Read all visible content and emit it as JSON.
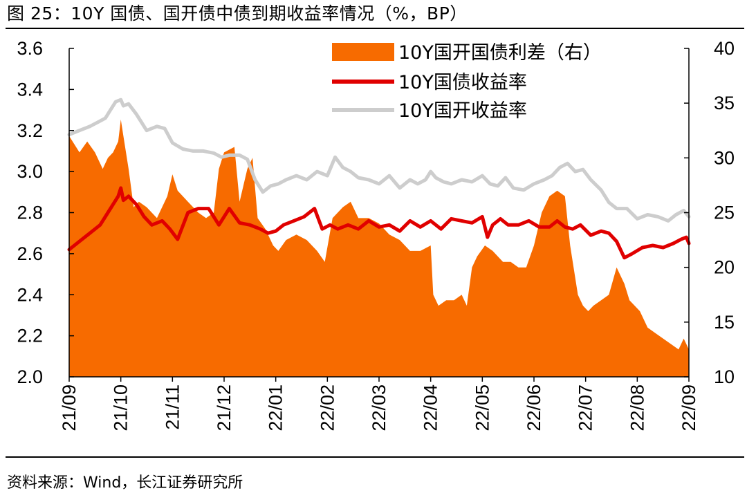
{
  "header": {
    "title": "图 25：10Y 国债、国开债中债到期收益率情况（%，BP）"
  },
  "footer": {
    "source": "资料来源：Wind，长江证券研究所"
  },
  "colors": {
    "spread": "#F76B00",
    "treasury": "#E00000",
    "cdb": "#CDCDCD",
    "axis": "#000000"
  },
  "chart_data": {
    "type": "area+line",
    "title": "10Y 国债、国开债中债到期收益率情况（%，BP）",
    "x_ticks": [
      "21/09",
      "21/10",
      "21/11",
      "21/12",
      "22/01",
      "22/02",
      "22/03",
      "22/04",
      "22/05",
      "22/06",
      "22/07",
      "22/08",
      "22/09"
    ],
    "y_left": {
      "label": "%",
      "range": [
        2.0,
        3.6
      ],
      "ticks": [
        "2.0",
        "2.2",
        "2.4",
        "2.6",
        "2.8",
        "3.0",
        "3.2",
        "3.4",
        "3.6"
      ]
    },
    "y_right": {
      "label": "BP",
      "range": [
        10,
        40
      ],
      "ticks": [
        "10",
        "15",
        "20",
        "25",
        "30",
        "35",
        "40"
      ]
    },
    "legend": {
      "position": "top-right",
      "items": [
        "10Y国开国债利差（右）",
        "10Y国债收益率",
        "10Y国开收益率"
      ]
    },
    "x_domain": [
      0,
      12
    ],
    "series": [
      {
        "name": "10Y国开国债利差（右）",
        "axis": "right",
        "kind": "area",
        "x": [
          0,
          0.2,
          0.35,
          0.5,
          0.65,
          0.75,
          0.85,
          0.95,
          1.0,
          1.05,
          1.15,
          1.25,
          1.35,
          1.5,
          1.7,
          1.9,
          2.0,
          2.1,
          2.3,
          2.5,
          2.65,
          2.8,
          2.9,
          3.0,
          3.2,
          3.3,
          3.45,
          3.55,
          3.65,
          3.8,
          3.95,
          4.05,
          4.2,
          4.4,
          4.6,
          4.8,
          4.95,
          5.1,
          5.3,
          5.45,
          5.6,
          5.8,
          6.0,
          6.2,
          6.4,
          6.6,
          6.8,
          7.0,
          7.05,
          7.15,
          7.3,
          7.45,
          7.6,
          7.7,
          7.8,
          7.9,
          8.05,
          8.2,
          8.4,
          8.55,
          8.7,
          8.85,
          9.0,
          9.15,
          9.3,
          9.45,
          9.6,
          9.7,
          9.85,
          9.95,
          10.05,
          10.15,
          10.3,
          10.45,
          10.6,
          10.75,
          10.85,
          10.95,
          11.05,
          11.2,
          11.35,
          11.5,
          11.65,
          11.8,
          11.9,
          12.0
        ],
        "values": [
          32,
          30.5,
          31.5,
          30.5,
          29,
          30,
          30.5,
          31.5,
          33.5,
          32,
          29,
          25.5,
          26,
          25.5,
          24.5,
          26.5,
          28.5,
          27,
          26,
          25,
          24.5,
          25,
          29,
          30.5,
          31,
          26,
          29,
          30,
          24.5,
          23.5,
          22,
          21.5,
          22.5,
          23,
          22.5,
          21.5,
          20.5,
          24.5,
          25.5,
          26,
          24.5,
          24.5,
          24,
          23,
          22.5,
          21.5,
          21.5,
          22,
          17.5,
          16.5,
          17,
          17,
          17.5,
          16.5,
          20,
          21,
          22,
          21.5,
          20.5,
          20.5,
          20,
          20,
          22,
          25,
          26.5,
          27,
          26.5,
          22,
          17.5,
          16.5,
          16,
          16.5,
          17,
          17.5,
          20,
          18.5,
          17,
          16.5,
          16,
          14.5,
          14,
          13.5,
          13,
          12.5,
          13.5,
          12.5
        ]
      },
      {
        "name": "10Y国债收益率",
        "axis": "left",
        "kind": "line",
        "x": [
          0,
          0.2,
          0.4,
          0.6,
          0.75,
          0.85,
          0.95,
          1.0,
          1.05,
          1.15,
          1.3,
          1.45,
          1.6,
          1.8,
          1.95,
          2.1,
          2.3,
          2.5,
          2.7,
          2.9,
          3.1,
          3.3,
          3.5,
          3.7,
          3.85,
          4.0,
          4.15,
          4.35,
          4.55,
          4.75,
          4.9,
          5.05,
          5.2,
          5.4,
          5.6,
          5.8,
          6.0,
          6.2,
          6.4,
          6.6,
          6.8,
          7.0,
          7.2,
          7.4,
          7.6,
          7.8,
          8.0,
          8.1,
          8.2,
          8.35,
          8.5,
          8.7,
          8.9,
          9.1,
          9.3,
          9.45,
          9.6,
          9.75,
          9.9,
          10.1,
          10.3,
          10.45,
          10.6,
          10.75,
          10.9,
          11.1,
          11.3,
          11.5,
          11.7,
          11.85,
          11.95,
          12.0
        ],
        "values": [
          2.62,
          2.66,
          2.7,
          2.74,
          2.8,
          2.84,
          2.88,
          2.92,
          2.86,
          2.88,
          2.84,
          2.78,
          2.74,
          2.76,
          2.72,
          2.67,
          2.8,
          2.82,
          2.82,
          2.74,
          2.82,
          2.75,
          2.74,
          2.72,
          2.7,
          2.71,
          2.74,
          2.76,
          2.78,
          2.82,
          2.72,
          2.74,
          2.72,
          2.74,
          2.72,
          2.76,
          2.73,
          2.74,
          2.71,
          2.76,
          2.73,
          2.76,
          2.72,
          2.77,
          2.76,
          2.75,
          2.78,
          2.68,
          2.74,
          2.77,
          2.74,
          2.74,
          2.76,
          2.73,
          2.73,
          2.76,
          2.73,
          2.72,
          2.74,
          2.69,
          2.71,
          2.7,
          2.66,
          2.58,
          2.6,
          2.63,
          2.64,
          2.63,
          2.65,
          2.67,
          2.68,
          2.65
        ]
      },
      {
        "name": "10Y国开收益率",
        "axis": "left",
        "kind": "line",
        "x": [
          0,
          0.2,
          0.4,
          0.55,
          0.7,
          0.8,
          0.9,
          1.0,
          1.05,
          1.15,
          1.3,
          1.5,
          1.7,
          1.85,
          2.0,
          2.2,
          2.4,
          2.6,
          2.8,
          2.95,
          3.1,
          3.3,
          3.45,
          3.6,
          3.75,
          3.9,
          4.05,
          4.2,
          4.4,
          4.6,
          4.8,
          5.0,
          5.15,
          5.3,
          5.45,
          5.6,
          5.8,
          6.0,
          6.2,
          6.4,
          6.6,
          6.75,
          6.9,
          7.0,
          7.1,
          7.25,
          7.4,
          7.6,
          7.8,
          8.0,
          8.15,
          8.3,
          8.45,
          8.6,
          8.8,
          9.0,
          9.2,
          9.35,
          9.5,
          9.65,
          9.8,
          9.95,
          10.1,
          10.3,
          10.45,
          10.6,
          10.8,
          11.0,
          11.2,
          11.4,
          11.6,
          11.75,
          11.9,
          12.0
        ],
        "values": [
          3.18,
          3.2,
          3.22,
          3.24,
          3.26,
          3.3,
          3.34,
          3.35,
          3.32,
          3.33,
          3.28,
          3.2,
          3.22,
          3.21,
          3.14,
          3.11,
          3.1,
          3.1,
          3.09,
          3.07,
          3.08,
          3.08,
          3.06,
          2.96,
          2.9,
          2.93,
          2.94,
          2.96,
          2.98,
          2.96,
          3.0,
          2.98,
          3.07,
          3.02,
          3.0,
          2.97,
          2.96,
          2.94,
          2.98,
          2.92,
          2.96,
          2.94,
          2.96,
          3.0,
          2.97,
          2.95,
          2.94,
          2.96,
          2.95,
          2.98,
          2.94,
          2.93,
          2.97,
          2.92,
          2.91,
          2.94,
          2.96,
          2.98,
          3.02,
          3.04,
          3.0,
          3.01,
          2.96,
          2.91,
          2.85,
          2.82,
          2.82,
          2.77,
          2.79,
          2.78,
          2.76,
          2.79,
          2.81,
          2.78
        ]
      }
    ]
  }
}
